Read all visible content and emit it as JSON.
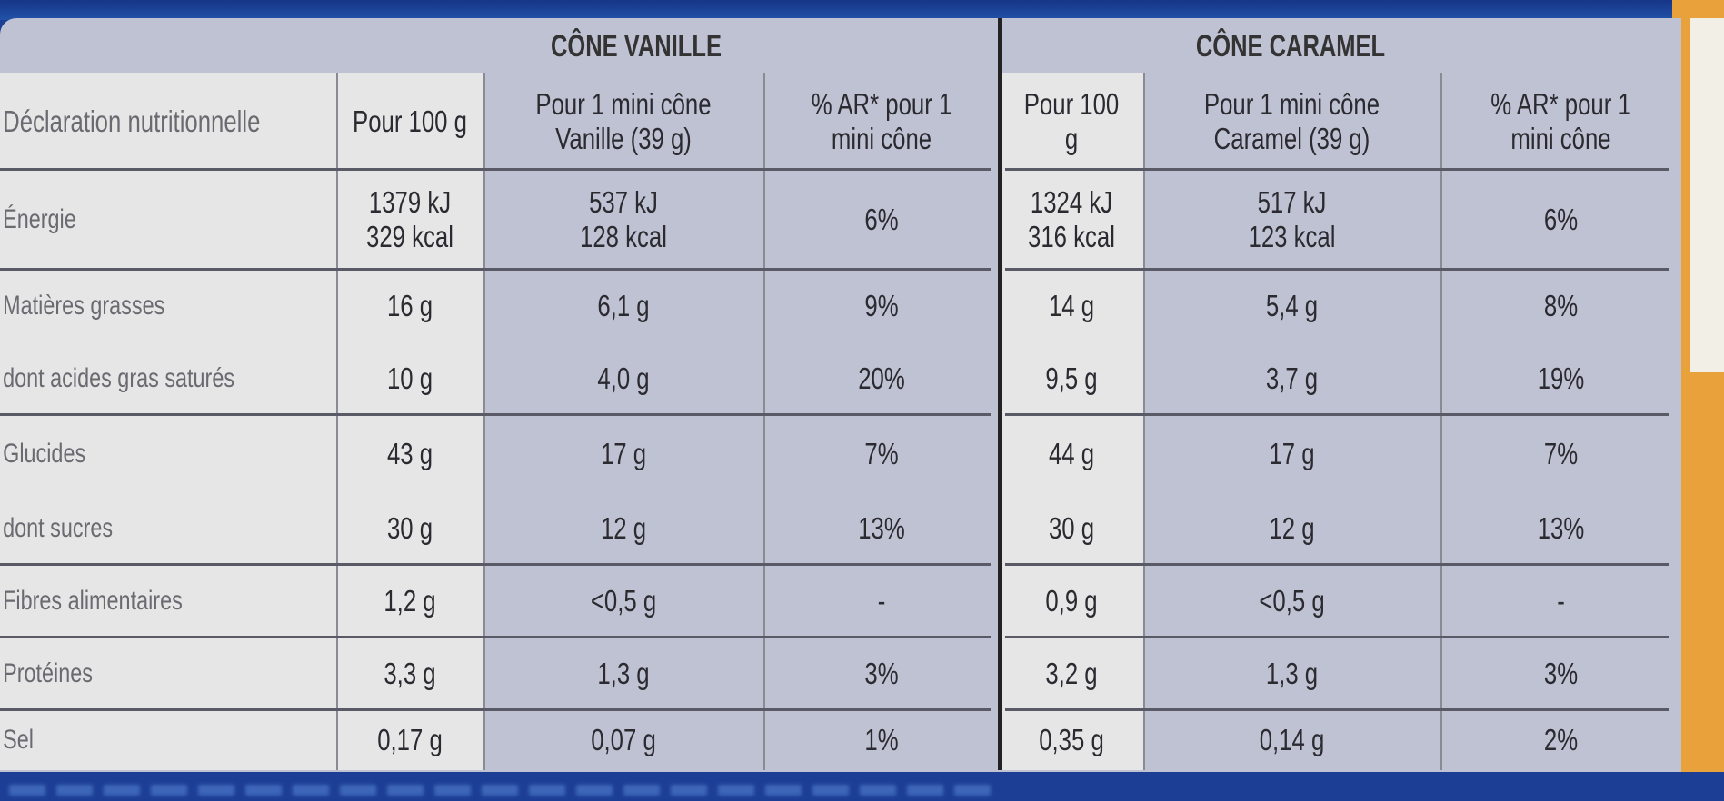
{
  "header": {
    "product_1": "CÔNE VANILLE",
    "product_2": "CÔNE CARAMEL",
    "columns": [
      "Déclaration nutritionnelle",
      "Pour 100 g",
      "Pour 1 mini cône Vanille (39 g)",
      "% AR* pour 1 mini cône",
      "Pour 100 g",
      "Pour 1 mini cône Caramel (39 g)",
      "% AR* pour 1 mini cône"
    ]
  },
  "rows": [
    {
      "label": "Énergie",
      "v100": "1379 kJ\n329 kcal",
      "vcone": "537 kJ\n128 kcal",
      "var": "6%",
      "c100": "1324 kJ\n316 kcal",
      "ccone": "517 kJ\n123 kcal",
      "car": "6%"
    },
    {
      "label": "Matières grasses",
      "v100": "16 g",
      "vcone": "6,1 g",
      "var": "9%",
      "c100": "14 g",
      "ccone": "5,4 g",
      "car": "8%"
    },
    {
      "label": "dont acides gras saturés",
      "v100": "10 g",
      "vcone": "4,0 g",
      "var": "20%",
      "c100": "9,5 g",
      "ccone": "3,7 g",
      "car": "19%"
    },
    {
      "label": "Glucides",
      "v100": "43 g",
      "vcone": "17 g",
      "var": "7%",
      "c100": "44 g",
      "ccone": "17 g",
      "car": "7%"
    },
    {
      "label": "dont sucres",
      "v100": "30 g",
      "vcone": "12 g",
      "var": "13%",
      "c100": "30 g",
      "ccone": "12 g",
      "car": "13%"
    },
    {
      "label": "Fibres alimentaires",
      "v100": "1,2 g",
      "vcone": "<0,5 g",
      "var": "-",
      "c100": "0,9 g",
      "ccone": "<0,5 g",
      "car": "-"
    },
    {
      "label": "Protéines",
      "v100": "3,3 g",
      "vcone": "1,3 g",
      "var": "3%",
      "c100": "3,2 g",
      "ccone": "1,3 g",
      "car": "3%"
    },
    {
      "label": "Sel",
      "v100": "0,17 g",
      "vcone": "0,07 g",
      "var": "1%",
      "c100": "0,35 g",
      "ccone": "0,14 g",
      "car": "2%"
    }
  ],
  "colors": {
    "panel": "#bfc2d2",
    "light_cells": "#e7e6e6",
    "band": "#1b3f93",
    "orange": "#e9a23b"
  }
}
